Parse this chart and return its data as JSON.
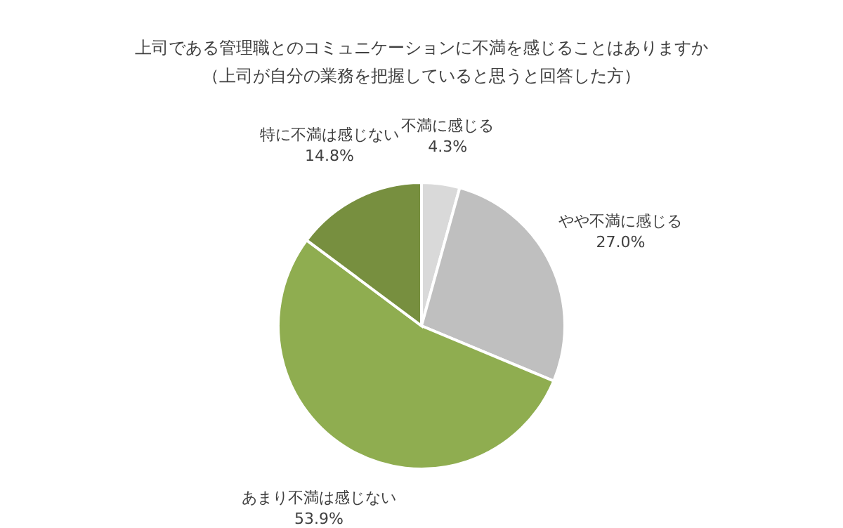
{
  "chart_data": {
    "type": "pie",
    "title": "上司である管理職とのコミュニケーションに不満を感じることはありますか",
    "subtitle": "（上司が自分の業務を把握していると思うと回答した方）",
    "categories": [
      "不満に感じる",
      "やや不満に感じる",
      "あまり不満は感じない",
      "特に不満は感じない"
    ],
    "values": [
      4.3,
      27.0,
      53.9,
      14.8
    ],
    "colors": [
      "#d9d9d9",
      "#bfbfbf",
      "#8fad50",
      "#778f3f"
    ],
    "value_labels": [
      "4.3%",
      "27.0%",
      "53.9%",
      "14.8%"
    ]
  }
}
